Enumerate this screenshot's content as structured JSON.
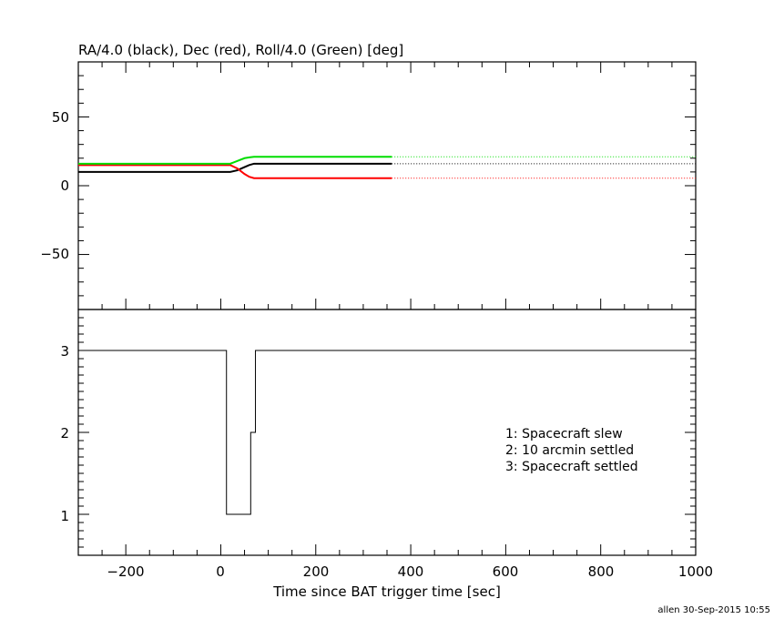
{
  "chart_data": [
    {
      "type": "line",
      "title": "RA/4.0 (black), Dec (red), Roll/4.0 (Green) [deg]",
      "xlim": [
        -300,
        1000
      ],
      "ylim": [
        -90,
        90
      ],
      "yticks_major": [
        -50,
        0,
        50
      ],
      "ytick_labels": [
        "−50",
        "0",
        "50"
      ],
      "series": [
        {
          "color": "#000000",
          "solid": [
            [
              -300,
              10.0
            ],
            [
              20,
              10.0
            ],
            [
              35,
              11.2
            ],
            [
              50,
              13.5
            ],
            [
              60,
              15.0
            ],
            [
              70,
              16.0
            ],
            [
              360,
              16.0
            ]
          ],
          "dotted": [
            [
              360,
              16.0
            ],
            [
              1000,
              16.0
            ]
          ]
        },
        {
          "color": "#ff0000",
          "solid": [
            [
              -300,
              15.0
            ],
            [
              20,
              15.0
            ],
            [
              35,
              12.5
            ],
            [
              50,
              8.5
            ],
            [
              60,
              6.5
            ],
            [
              70,
              5.5
            ],
            [
              360,
              5.5
            ]
          ],
          "dotted": [
            [
              360,
              5.5
            ],
            [
              1000,
              5.5
            ]
          ]
        },
        {
          "color": "#00dd00",
          "solid": [
            [
              -300,
              16.0
            ],
            [
              20,
              16.0
            ],
            [
              35,
              18.0
            ],
            [
              50,
              20.0
            ],
            [
              60,
              20.6
            ],
            [
              70,
              21.0
            ],
            [
              360,
              21.0
            ]
          ],
          "dotted": [
            [
              360,
              21.0
            ],
            [
              1000,
              21.0
            ]
          ]
        }
      ]
    },
    {
      "type": "line",
      "xlabel": "Time since BAT trigger time [sec]",
      "xlim": [
        -300,
        1000
      ],
      "ylim": [
        0.5,
        3.5
      ],
      "xticks_major": [
        -200,
        0,
        200,
        400,
        600,
        800,
        1000
      ],
      "xtick_labels": [
        "−200",
        "0",
        "200",
        "400",
        "600",
        "800",
        "1000"
      ],
      "yticks_major": [
        1,
        2,
        3
      ],
      "ytick_labels": [
        "1",
        "2",
        "3"
      ],
      "series": [
        {
          "color": "#000000",
          "step": [
            [
              -300,
              3
            ],
            [
              12,
              3
            ],
            [
              12,
              1
            ],
            [
              63,
              1
            ],
            [
              63,
              2
            ],
            [
              73,
              2
            ],
            [
              73,
              3
            ],
            [
              1000,
              3
            ]
          ]
        }
      ],
      "annotations": [
        "1: Spacecraft slew",
        "2: 10 arcmin settled",
        "3: Spacecraft settled"
      ]
    }
  ],
  "footer": "allen 30-Sep-2015 10:55"
}
